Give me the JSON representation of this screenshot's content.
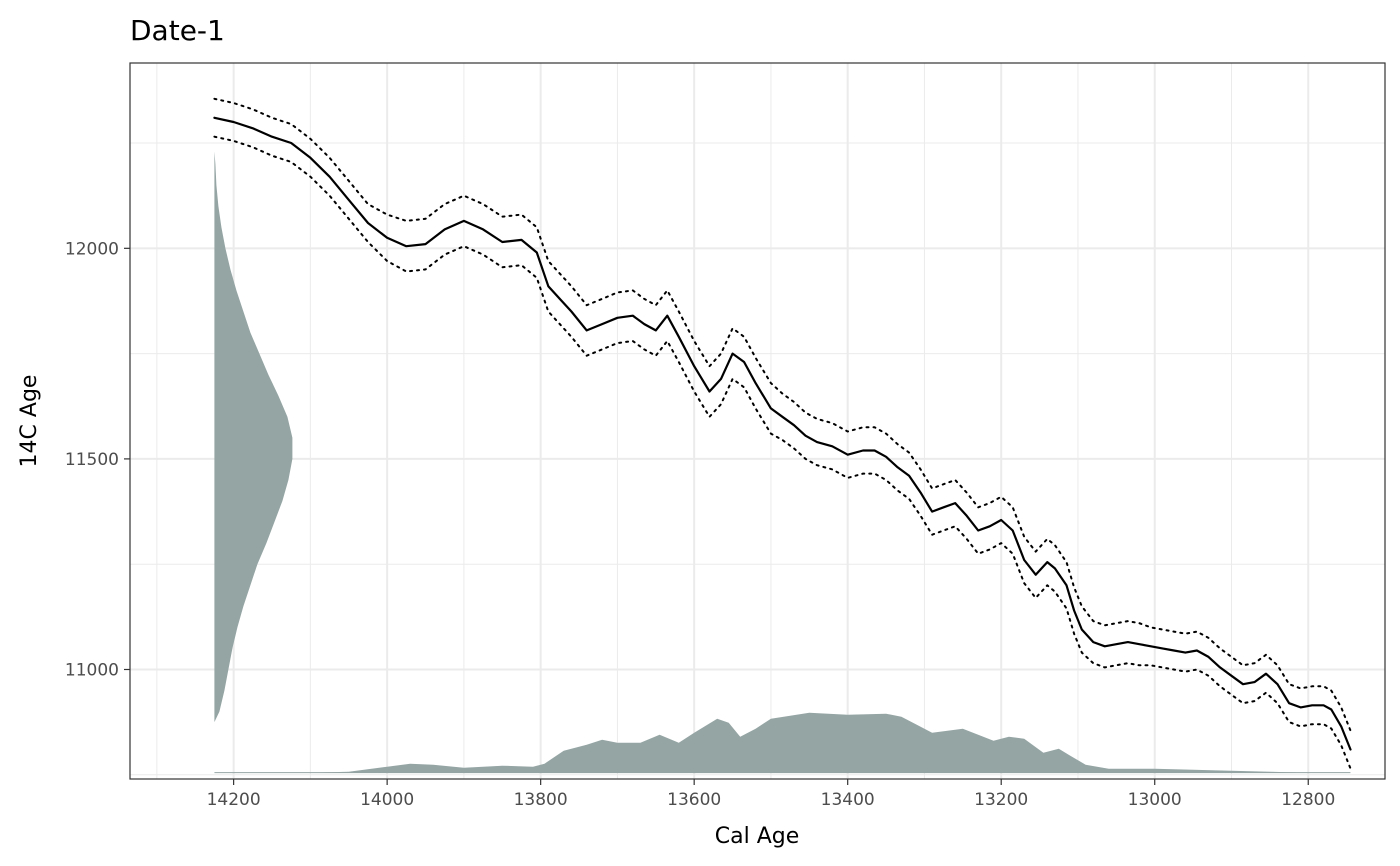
{
  "chart_data": {
    "type": "line",
    "title": "Date-1",
    "xlabel": "Cal Age",
    "ylabel": "14C Age",
    "x_reversed": true,
    "xlim": [
      14335,
      12700
    ],
    "ylim": [
      10740,
      12440
    ],
    "x_ticks": [
      14200,
      14000,
      13800,
      13600,
      13400,
      13200,
      13000,
      12800
    ],
    "x_tick_labels": [
      "14200",
      "14000",
      "13800",
      "13600",
      "13400",
      "13200",
      "13000",
      "12800"
    ],
    "y_ticks": [
      11000,
      11500,
      12000
    ],
    "y_tick_labels": [
      "11000",
      "11500",
      "12000"
    ],
    "grid": true,
    "colors": {
      "curve": "#000000",
      "density": "#95a5a4",
      "grid": "#ebebeb",
      "panel_border": "#333333"
    },
    "series": [
      {
        "style": "solid",
        "x": [
          14225,
          14200,
          14175,
          14150,
          14125,
          14100,
          14075,
          14050,
          14025,
          14000,
          13975,
          13950,
          13925,
          13900,
          13875,
          13850,
          13825,
          13805,
          13790,
          13775,
          13760,
          13740,
          13720,
          13700,
          13680,
          13665,
          13650,
          13635,
          13620,
          13600,
          13580,
          13565,
          13550,
          13535,
          13520,
          13500,
          13485,
          13470,
          13455,
          13440,
          13420,
          13400,
          13380,
          13365,
          13350,
          13335,
          13320,
          13305,
          13290,
          13275,
          13260,
          13245,
          13230,
          13215,
          13200,
          13185,
          13170,
          13155,
          13140,
          13130,
          13115,
          13105,
          13095,
          13080,
          13065,
          13050,
          13035,
          13020,
          13005,
          12990,
          12975,
          12960,
          12945,
          12930,
          12915,
          12900,
          12885,
          12870,
          12855,
          12840,
          12825,
          12810,
          12795,
          12780,
          12770,
          12757,
          12745
        ],
        "y": [
          12310,
          12300,
          12285,
          12265,
          12250,
          12215,
          12170,
          12115,
          12060,
          12025,
          12005,
          12010,
          12045,
          12065,
          12045,
          12015,
          12020,
          11990,
          11910,
          11880,
          11850,
          11805,
          11820,
          11835,
          11840,
          11820,
          11805,
          11840,
          11790,
          11720,
          11660,
          11690,
          11750,
          11730,
          11680,
          11620,
          11600,
          11580,
          11555,
          11540,
          11530,
          11510,
          11520,
          11520,
          11505,
          11480,
          11460,
          11420,
          11375,
          11385,
          11395,
          11365,
          11330,
          11340,
          11355,
          11330,
          11260,
          11225,
          11255,
          11240,
          11200,
          11140,
          11095,
          11065,
          11055,
          11060,
          11065,
          11060,
          11055,
          11050,
          11045,
          11040,
          11045,
          11030,
          11005,
          10985,
          10965,
          10970,
          10990,
          10965,
          10920,
          10910,
          10915,
          10915,
          10905,
          10865,
          10810
        ]
      },
      {
        "style": "dotted",
        "x": [
          14225,
          14200,
          14175,
          14150,
          14125,
          14100,
          14075,
          14050,
          14025,
          14000,
          13975,
          13950,
          13925,
          13900,
          13875,
          13850,
          13825,
          13805,
          13790,
          13775,
          13760,
          13740,
          13720,
          13700,
          13680,
          13665,
          13650,
          13635,
          13620,
          13600,
          13580,
          13565,
          13550,
          13535,
          13520,
          13500,
          13485,
          13470,
          13455,
          13440,
          13420,
          13400,
          13380,
          13365,
          13350,
          13335,
          13320,
          13305,
          13290,
          13275,
          13260,
          13245,
          13230,
          13215,
          13200,
          13185,
          13170,
          13155,
          13140,
          13130,
          13115,
          13105,
          13095,
          13080,
          13065,
          13050,
          13035,
          13020,
          13005,
          12990,
          12975,
          12960,
          12945,
          12930,
          12915,
          12900,
          12885,
          12870,
          12855,
          12840,
          12825,
          12810,
          12795,
          12780,
          12770,
          12757,
          12745
        ],
        "y": [
          12355,
          12345,
          12330,
          12310,
          12295,
          12260,
          12215,
          12160,
          12105,
          12080,
          12065,
          12070,
          12105,
          12125,
          12105,
          12075,
          12080,
          12050,
          11970,
          11940,
          11910,
          11865,
          11880,
          11895,
          11900,
          11880,
          11865,
          11900,
          11850,
          11780,
          11720,
          11750,
          11810,
          11790,
          11740,
          11680,
          11655,
          11635,
          11610,
          11595,
          11585,
          11565,
          11575,
          11575,
          11560,
          11535,
          11515,
          11475,
          11430,
          11440,
          11450,
          11420,
          11385,
          11395,
          11410,
          11385,
          11315,
          11280,
          11310,
          11295,
          11255,
          11195,
          11150,
          11115,
          11105,
          11110,
          11115,
          11110,
          11100,
          11095,
          11090,
          11085,
          11090,
          11075,
          11050,
          11030,
          11010,
          11015,
          11035,
          11010,
          10965,
          10955,
          10960,
          10960,
          10950,
          10910,
          10855
        ]
      },
      {
        "style": "dotted",
        "x": [
          14225,
          14200,
          14175,
          14150,
          14125,
          14100,
          14075,
          14050,
          14025,
          14000,
          13975,
          13950,
          13925,
          13900,
          13875,
          13850,
          13825,
          13805,
          13790,
          13775,
          13760,
          13740,
          13720,
          13700,
          13680,
          13665,
          13650,
          13635,
          13620,
          13600,
          13580,
          13565,
          13550,
          13535,
          13520,
          13500,
          13485,
          13470,
          13455,
          13440,
          13420,
          13400,
          13380,
          13365,
          13350,
          13335,
          13320,
          13305,
          13290,
          13275,
          13260,
          13245,
          13230,
          13215,
          13200,
          13185,
          13170,
          13155,
          13140,
          13130,
          13115,
          13105,
          13095,
          13080,
          13065,
          13050,
          13035,
          13020,
          13005,
          12990,
          12975,
          12960,
          12945,
          12930,
          12915,
          12900,
          12885,
          12870,
          12855,
          12840,
          12825,
          12810,
          12795,
          12780,
          12770,
          12757,
          12745
        ],
        "y": [
          12265,
          12255,
          12240,
          12220,
          12205,
          12170,
          12125,
          12070,
          12015,
          11970,
          11945,
          11950,
          11985,
          12005,
          11985,
          11955,
          11960,
          11930,
          11850,
          11820,
          11790,
          11745,
          11760,
          11775,
          11780,
          11760,
          11745,
          11780,
          11730,
          11660,
          11600,
          11630,
          11690,
          11670,
          11620,
          11560,
          11545,
          11525,
          11500,
          11485,
          11475,
          11455,
          11465,
          11465,
          11450,
          11425,
          11405,
          11365,
          11320,
          11330,
          11340,
          11310,
          11275,
          11285,
          11300,
          11275,
          11205,
          11170,
          11200,
          11185,
          11145,
          11085,
          11040,
          11015,
          11005,
          11010,
          11015,
          11010,
          11010,
          11005,
          11000,
          10995,
          11000,
          10985,
          10960,
          10940,
          10920,
          10925,
          10945,
          10920,
          10875,
          10865,
          10870,
          10870,
          10860,
          10820,
          10765
        ]
      }
    ],
    "c14_density": {
      "type": "area",
      "baseline_x": 14225,
      "y": [
        10875,
        10900,
        10950,
        11000,
        11050,
        11100,
        11150,
        11200,
        11250,
        11300,
        11350,
        11400,
        11450,
        11500,
        11550,
        11600,
        11650,
        11700,
        11750,
        11800,
        11850,
        11900,
        11950,
        12000,
        12050,
        12100,
        12150,
        12200,
        12230
      ],
      "width": [
        0,
        5,
        10,
        14,
        18,
        23,
        29,
        36,
        43,
        52,
        60,
        68,
        74,
        78,
        78,
        73,
        64,
        54,
        45,
        36,
        29,
        22,
        16,
        11,
        7,
        4,
        2,
        1,
        0
      ]
    },
    "cal_density": {
      "type": "area",
      "baseline_y": 10755,
      "x": [
        14225,
        14100,
        14050,
        14000,
        13970,
        13940,
        13900,
        13850,
        13810,
        13795,
        13770,
        13740,
        13720,
        13700,
        13670,
        13645,
        13620,
        13600,
        13570,
        13555,
        13540,
        13520,
        13500,
        13450,
        13400,
        13350,
        13330,
        13310,
        13290,
        13270,
        13250,
        13230,
        13210,
        13190,
        13170,
        13145,
        13125,
        13110,
        13090,
        13060,
        13000,
        12950,
        12900,
        12850,
        12800,
        12745
      ],
      "height": [
        0,
        0,
        1,
        6,
        9,
        8,
        5,
        7,
        6,
        9,
        22,
        28,
        33,
        30,
        30,
        38,
        30,
        40,
        54,
        50,
        36,
        44,
        54,
        60,
        58,
        59,
        56,
        48,
        40,
        42,
        44,
        38,
        32,
        36,
        34,
        20,
        24,
        17,
        8,
        4,
        4,
        3,
        2,
        1,
        0,
        0
      ]
    }
  }
}
